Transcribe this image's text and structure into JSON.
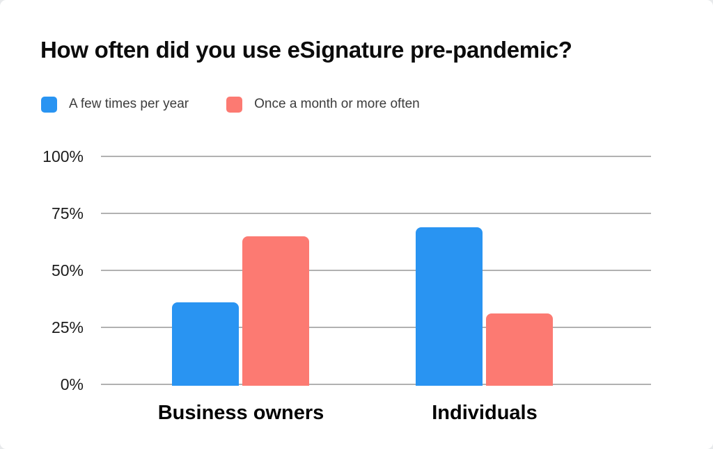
{
  "title": "How often did you use eSignature pre-pandemic?",
  "colors": {
    "page_bg": "#e7e9eb",
    "card_bg": "#ffffff",
    "grid": "#b1b1b1",
    "title_text": "#0c0c0c",
    "legend_text": "#3c3c3c",
    "tick_text": "#1c1c1c",
    "category_text": "#000000",
    "series_blue": "#2994F2",
    "series_red": "#FC7A72"
  },
  "chart_data": {
    "type": "bar",
    "title": "How often did you use eSignature pre-pandemic?",
    "categories": [
      "Business owners",
      "Individuals"
    ],
    "series": [
      {
        "name": "A few times per year",
        "color": "#2994F2",
        "values": [
          36,
          69
        ]
      },
      {
        "name": "Once a month or more often",
        "color": "#FC7A72",
        "values": [
          65,
          31
        ]
      }
    ],
    "xlabel": "",
    "ylabel": "",
    "ylim": [
      0,
      100
    ],
    "y_ticks": [
      "0%",
      "25%",
      "50%",
      "75%",
      "100%"
    ],
    "y_tick_values": [
      0,
      25,
      50,
      75,
      100
    ],
    "grid": true,
    "legend_position": "top-left"
  }
}
